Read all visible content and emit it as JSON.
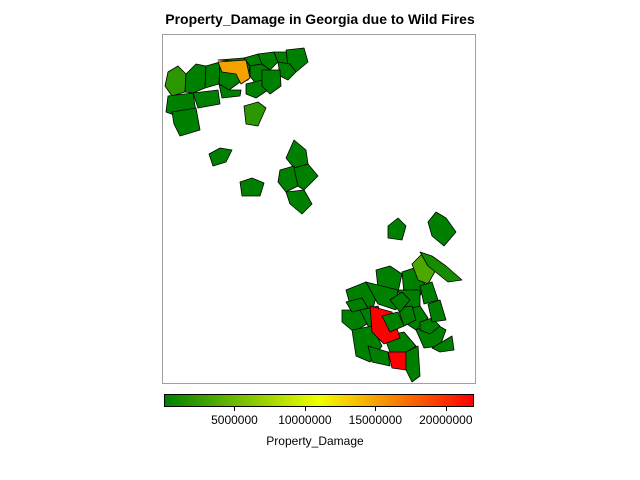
{
  "chart_data": {
    "type": "choropleth",
    "title": "Property_Damage in Georgia due to Wild Fires",
    "legend": {
      "label": "Property_Damage",
      "min": 0,
      "max": 22000000,
      "ticks": [
        5000000,
        10000000,
        15000000,
        20000000
      ],
      "tick_labels": [
        "5000000",
        "10000000",
        "15000000",
        "20000000"
      ],
      "colors": [
        "#008000",
        "#f0ff00",
        "#ff0000"
      ]
    },
    "regions": [
      {
        "value": 2000000
      },
      {
        "value": 0
      },
      {
        "value": 0
      },
      {
        "value": 0
      },
      {
        "value": 0
      },
      {
        "value": 0
      },
      {
        "value": 0
      },
      {
        "value": 0
      },
      {
        "value": 0
      },
      {
        "value": 15000000
      },
      {
        "value": 0
      },
      {
        "value": 0
      },
      {
        "value": 0
      },
      {
        "value": 0
      },
      {
        "value": 0
      },
      {
        "value": 0
      },
      {
        "value": 0
      },
      {
        "value": 0
      },
      {
        "value": 0
      },
      {
        "value": 0
      },
      {
        "value": 2000000
      },
      {
        "value": 0
      },
      {
        "value": 0
      },
      {
        "value": 0
      },
      {
        "value": 0
      },
      {
        "value": 0
      },
      {
        "value": 0
      },
      {
        "value": 0
      },
      {
        "value": 0
      },
      {
        "value": 0
      },
      {
        "value": 0
      },
      {
        "value": 0
      },
      {
        "value": 3500000
      },
      {
        "value": 1000000
      },
      {
        "value": 0
      },
      {
        "value": 0
      },
      {
        "value": 0
      },
      {
        "value": 0
      },
      {
        "value": 0
      },
      {
        "value": 0
      },
      {
        "value": 0
      },
      {
        "value": 22000000
      },
      {
        "value": 22000000
      },
      {
        "value": 0
      },
      {
        "value": 0
      },
      {
        "value": 0
      },
      {
        "value": 0
      },
      {
        "value": 0
      },
      {
        "value": 0
      },
      {
        "value": 0
      },
      {
        "value": 0
      },
      {
        "value": 0
      }
    ]
  }
}
